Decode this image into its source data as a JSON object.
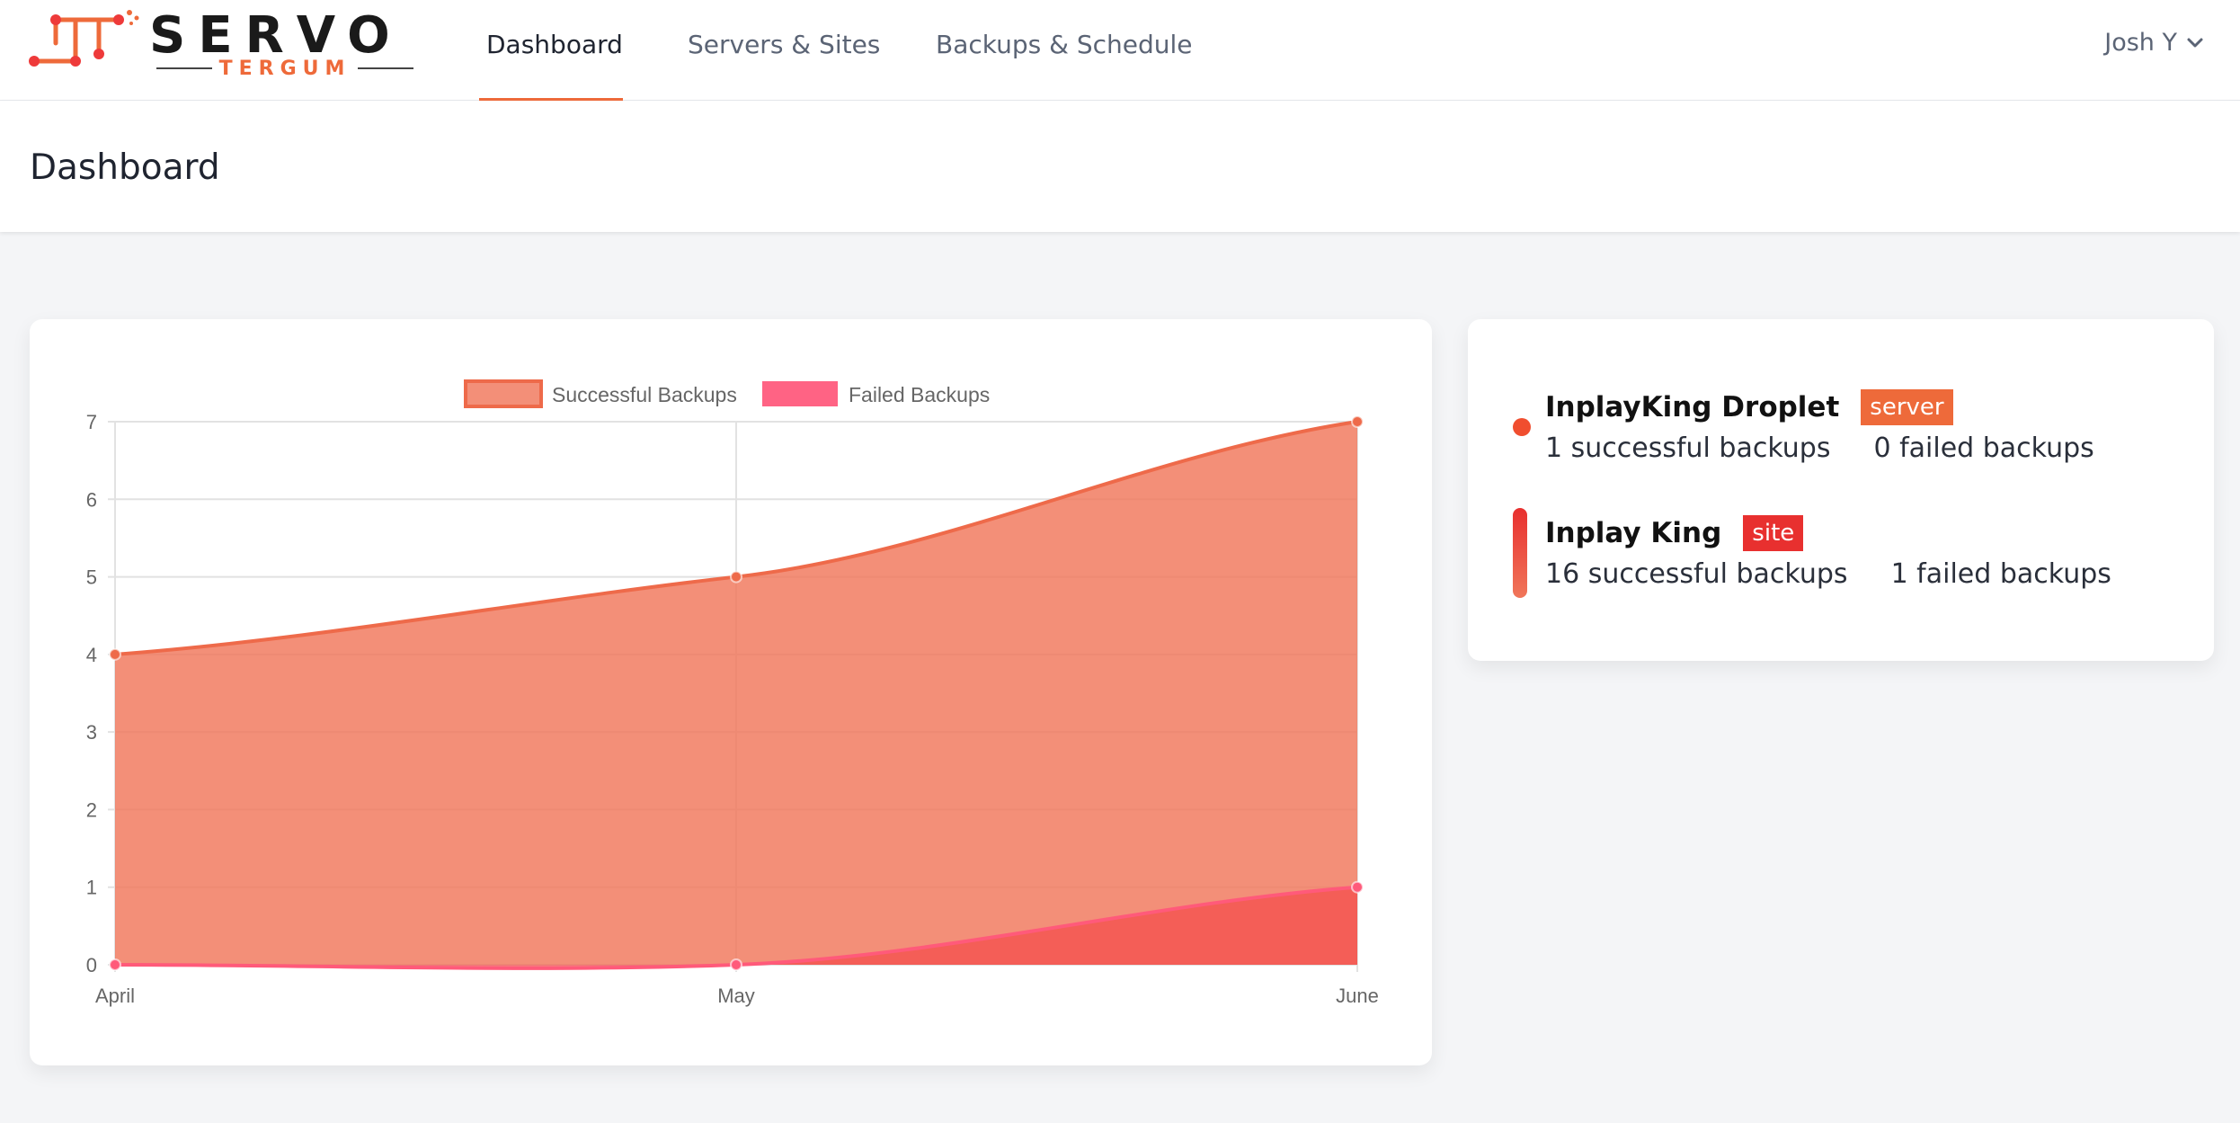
{
  "brand": {
    "name": "SERVO",
    "sub": "TERGUM",
    "accent": "#ee6a3a"
  },
  "nav": {
    "tabs": [
      {
        "label": "Dashboard",
        "active": true
      },
      {
        "label": "Servers & Sites",
        "active": false
      },
      {
        "label": "Backups & Schedule",
        "active": false
      }
    ],
    "user": "Josh Y",
    "user_icon": "chevron-down-icon"
  },
  "page": {
    "title": "Dashboard"
  },
  "chart_data": {
    "type": "area",
    "x": [
      "April",
      "May",
      "June"
    ],
    "series": [
      {
        "name": "Successful Backups",
        "values": [
          4,
          5,
          7
        ],
        "color": "#f0765a"
      },
      {
        "name": "Failed Backups",
        "values": [
          0,
          0,
          1
        ],
        "color": "#ff6384"
      }
    ],
    "yticks": [
      0,
      1,
      2,
      3,
      4,
      5,
      6,
      7
    ],
    "ylim": [
      0,
      7
    ],
    "grid": true,
    "legend_position": "top"
  },
  "summary": {
    "items": [
      {
        "name": "InplayKing Droplet",
        "badge": "server",
        "badge_color": "#ee6a3a",
        "indicator": "dot",
        "successful": "1 successful backups",
        "failed": "0 failed backups"
      },
      {
        "name": "Inplay King",
        "badge": "site",
        "badge_color": "#e8302f",
        "indicator": "bar",
        "successful": "16 successful backups",
        "failed": "1 failed backups"
      }
    ]
  }
}
